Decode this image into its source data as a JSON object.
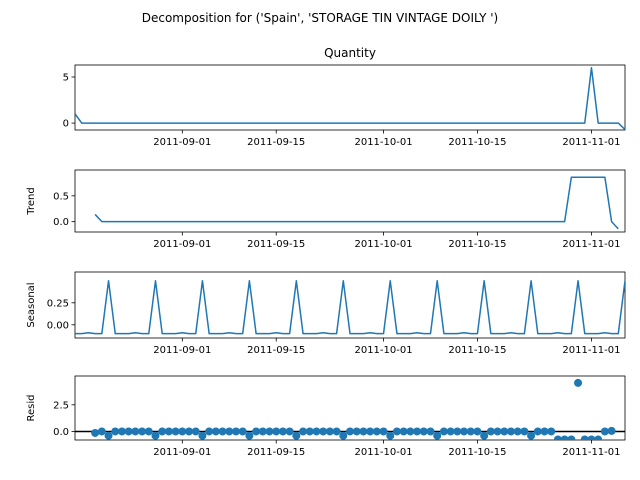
{
  "chart_data": {
    "type": "line",
    "title": "Decomposition for ('Spain', 'STORAGE TIN VINTAGE DOILY ')",
    "x_start": "2011-08-16",
    "x_end": "2011-11-06",
    "x_ticks": [
      "2011-09-01",
      "2011-09-15",
      "2011-10-01",
      "2011-10-15",
      "2011-11-01"
    ],
    "panels": [
      {
        "name": "observed",
        "title": "Quantity",
        "ylabel": "",
        "kind": "line",
        "color": "#1f77b4",
        "ylim": [
          -0.75,
          6.3
        ],
        "yticks": [
          0,
          5
        ],
        "ytick_labels": [
          "0",
          "5"
        ],
        "points": [
          [
            "2011-08-16",
            1
          ],
          [
            "2011-08-17",
            0
          ],
          [
            "2011-10-31",
            0
          ],
          [
            "2011-11-01",
            6
          ],
          [
            "2011-11-02",
            0
          ],
          [
            "2011-11-05",
            0
          ],
          [
            "2011-11-06",
            -0.7
          ]
        ]
      },
      {
        "name": "trend",
        "title": "",
        "ylabel": "Trend",
        "kind": "line",
        "color": "#1f77b4",
        "ylim": [
          -0.2,
          1.0
        ],
        "yticks": [
          0.0,
          0.5
        ],
        "ytick_labels": [
          "0.0",
          "0.5"
        ],
        "points": [
          [
            "2011-08-19",
            0.14
          ],
          [
            "2011-08-20",
            0.0
          ],
          [
            "2011-10-28",
            0.0
          ],
          [
            "2011-10-29",
            0.86
          ],
          [
            "2011-11-03",
            0.86
          ],
          [
            "2011-11-04",
            0.0
          ],
          [
            "2011-11-05",
            -0.14
          ]
        ]
      },
      {
        "name": "seasonal",
        "title": "",
        "ylabel": "Seasonal",
        "kind": "line",
        "color": "#1f77b4",
        "ylim": [
          -0.15,
          0.6
        ],
        "yticks": [
          0.0,
          0.25
        ],
        "ytick_labels": [
          "0.00",
          "0.25"
        ],
        "period_start": "2011-08-16",
        "period_pattern": [
          -0.1,
          -0.1,
          -0.09,
          -0.1,
          -0.1,
          0.5,
          -0.1
        ],
        "end_date": "2011-11-06"
      },
      {
        "name": "resid",
        "title": "",
        "ylabel": "Resid",
        "kind": "scatter",
        "color": "#1f77b4",
        "ylim": [
          -0.8,
          5.2
        ],
        "yticks": [
          0.0,
          2.5
        ],
        "ytick_labels": [
          "0.0",
          "2.5"
        ],
        "baseline": 0,
        "points": [
          [
            "2011-08-19",
            -0.14
          ],
          [
            "2011-08-20",
            0.0
          ],
          [
            "2011-08-21",
            -0.4
          ],
          [
            "2011-08-22",
            0.0
          ],
          [
            "2011-08-23",
            0.0
          ],
          [
            "2011-08-24",
            0.0
          ],
          [
            "2011-08-25",
            0.0
          ],
          [
            "2011-08-26",
            0.0
          ],
          [
            "2011-08-27",
            0.0
          ],
          [
            "2011-08-28",
            -0.4
          ],
          [
            "2011-08-29",
            0.0
          ],
          [
            "2011-08-30",
            0.0
          ],
          [
            "2011-08-31",
            0.0
          ],
          [
            "2011-09-01",
            0.0
          ],
          [
            "2011-09-02",
            0.0
          ],
          [
            "2011-09-03",
            0.0
          ],
          [
            "2011-09-04",
            -0.4
          ],
          [
            "2011-09-05",
            0.0
          ],
          [
            "2011-09-06",
            0.0
          ],
          [
            "2011-09-07",
            0.0
          ],
          [
            "2011-09-08",
            0.0
          ],
          [
            "2011-09-09",
            0.0
          ],
          [
            "2011-09-10",
            0.0
          ],
          [
            "2011-09-11",
            -0.4
          ],
          [
            "2011-09-12",
            0.0
          ],
          [
            "2011-09-13",
            0.0
          ],
          [
            "2011-09-14",
            0.0
          ],
          [
            "2011-09-15",
            0.0
          ],
          [
            "2011-09-16",
            0.0
          ],
          [
            "2011-09-17",
            0.0
          ],
          [
            "2011-09-18",
            -0.4
          ],
          [
            "2011-09-19",
            0.0
          ],
          [
            "2011-09-20",
            0.0
          ],
          [
            "2011-09-21",
            0.0
          ],
          [
            "2011-09-22",
            0.0
          ],
          [
            "2011-09-23",
            0.0
          ],
          [
            "2011-09-24",
            0.0
          ],
          [
            "2011-09-25",
            -0.4
          ],
          [
            "2011-09-26",
            0.0
          ],
          [
            "2011-09-27",
            0.0
          ],
          [
            "2011-09-28",
            0.0
          ],
          [
            "2011-09-29",
            0.0
          ],
          [
            "2011-09-30",
            0.0
          ],
          [
            "2011-10-01",
            0.0
          ],
          [
            "2011-10-02",
            -0.4
          ],
          [
            "2011-10-03",
            0.0
          ],
          [
            "2011-10-04",
            0.0
          ],
          [
            "2011-10-05",
            0.0
          ],
          [
            "2011-10-06",
            0.0
          ],
          [
            "2011-10-07",
            0.0
          ],
          [
            "2011-10-08",
            0.0
          ],
          [
            "2011-10-09",
            -0.4
          ],
          [
            "2011-10-10",
            0.0
          ],
          [
            "2011-10-11",
            0.0
          ],
          [
            "2011-10-12",
            0.0
          ],
          [
            "2011-10-13",
            0.0
          ],
          [
            "2011-10-14",
            0.0
          ],
          [
            "2011-10-15",
            0.0
          ],
          [
            "2011-10-16",
            -0.4
          ],
          [
            "2011-10-17",
            0.0
          ],
          [
            "2011-10-18",
            0.0
          ],
          [
            "2011-10-19",
            0.0
          ],
          [
            "2011-10-20",
            0.0
          ],
          [
            "2011-10-21",
            0.0
          ],
          [
            "2011-10-22",
            0.0
          ],
          [
            "2011-10-23",
            -0.4
          ],
          [
            "2011-10-24",
            0.0
          ],
          [
            "2011-10-25",
            0.0
          ],
          [
            "2011-10-26",
            0.0
          ],
          [
            "2011-10-27",
            -0.75
          ],
          [
            "2011-10-28",
            -0.75
          ],
          [
            "2011-10-29",
            -0.75
          ],
          [
            "2011-10-30",
            4.55
          ],
          [
            "2011-10-31",
            -0.75
          ],
          [
            "2011-11-01",
            -0.75
          ],
          [
            "2011-11-02",
            -0.75
          ],
          [
            "2011-11-03",
            0.0
          ],
          [
            "2011-11-04",
            0.05
          ]
        ]
      }
    ]
  }
}
